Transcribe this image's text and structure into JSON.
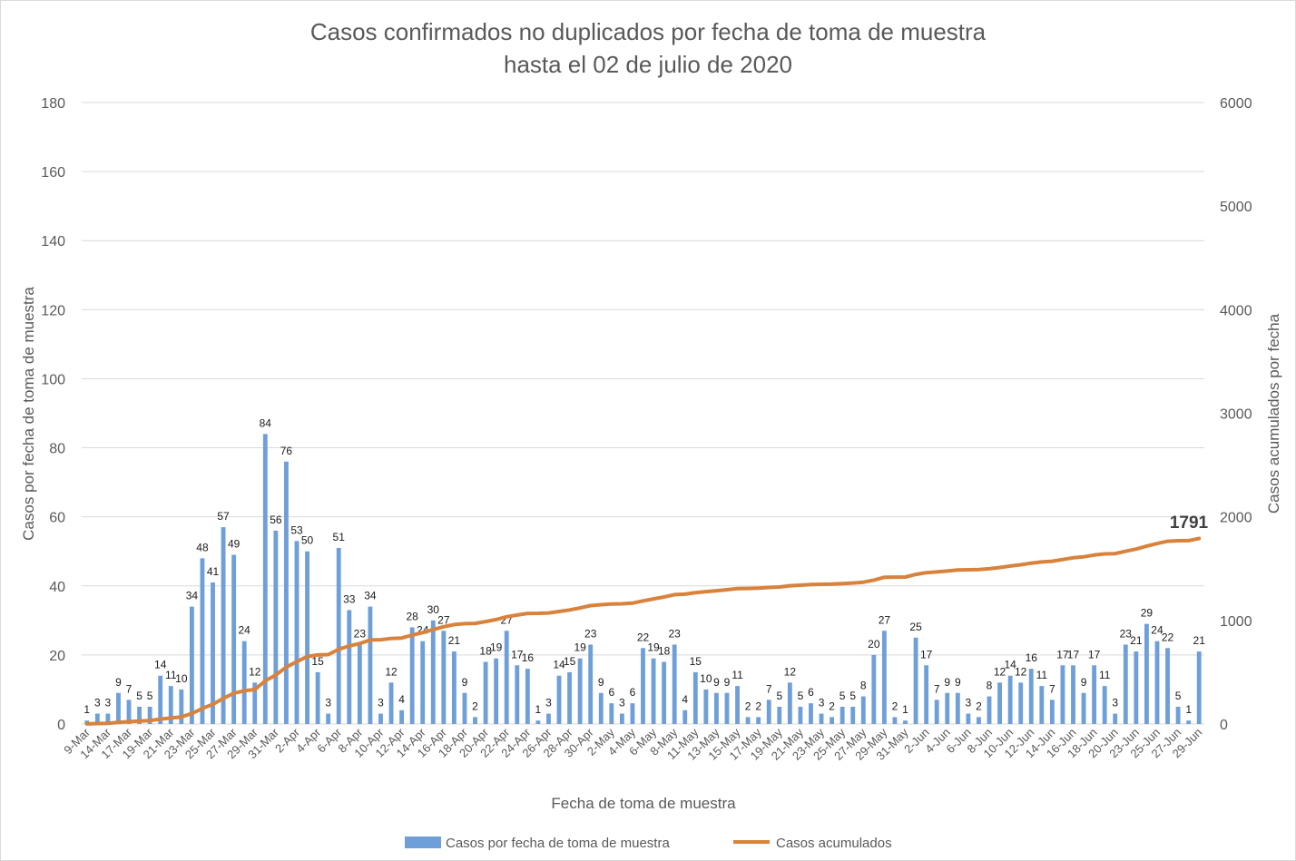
{
  "chart_data": {
    "type": "bar",
    "title": "Casos confirmados no duplicados por fecha de toma de muestra",
    "subtitle": "hasta el 02 de julio de 2020",
    "xlabel": "Fecha de toma de muestra",
    "ylabel": "Casos por fecha de toma de muestra",
    "y2label": "Casos acumulados por fecha",
    "ylim": [
      0,
      180
    ],
    "y2lim": [
      0,
      6000
    ],
    "yticks": [
      "0",
      "20",
      "40",
      "60",
      "80",
      "100",
      "120",
      "140",
      "160",
      "180"
    ],
    "y2ticks": [
      "0",
      "1000",
      "2000",
      "3000",
      "4000",
      "5000",
      "6000"
    ],
    "grid": true,
    "legend_position": "bottom",
    "x_tick_labels": [
      "9-Mar",
      "14-Mar",
      "17-Mar",
      "19-Mar",
      "21-Mar",
      "23-Mar",
      "25-Mar",
      "27-Mar",
      "29-Mar",
      "31-Mar",
      "2-Apr",
      "4-Apr",
      "6-Apr",
      "8-Apr",
      "10-Apr",
      "12-Apr",
      "14-Apr",
      "16-Apr",
      "18-Apr",
      "20-Apr",
      "22-Apr",
      "24-Apr",
      "26-Apr",
      "28-Apr",
      "30-Apr",
      "2-May",
      "4-May",
      "6-May",
      "8-May",
      "11-May",
      "13-May",
      "15-May",
      "17-May",
      "19-May",
      "21-May",
      "23-May",
      "25-May",
      "27-May",
      "29-May",
      "31-May",
      "2-Jun",
      "4-Jun",
      "6-Jun",
      "8-Jun",
      "10-Jun",
      "12-Jun",
      "14-Jun",
      "16-Jun",
      "18-Jun",
      "20-Jun",
      "23-Jun",
      "25-Jun",
      "27-Jun",
      "29-Jun"
    ],
    "series": [
      {
        "name": "Casos por fecha de toma de muestra",
        "type": "bar",
        "color": "#6f9fd8",
        "values": [
          1,
          3,
          3,
          9,
          7,
          5,
          5,
          14,
          11,
          10,
          34,
          48,
          41,
          57,
          49,
          24,
          12,
          84,
          56,
          76,
          53,
          50,
          15,
          3,
          51,
          33,
          23,
          34,
          3,
          12,
          4,
          28,
          24,
          30,
          27,
          21,
          9,
          2,
          18,
          19,
          27,
          17,
          16,
          1,
          3,
          14,
          15,
          19,
          23,
          9,
          6,
          3,
          6,
          22,
          19,
          18,
          23,
          4,
          15,
          10,
          9,
          9,
          11,
          2,
          2,
          7,
          5,
          12,
          5,
          6,
          3,
          2,
          5,
          5,
          8,
          20,
          27,
          2,
          1,
          25,
          17,
          7,
          9,
          9,
          3,
          2,
          8,
          12,
          14,
          12,
          16,
          11,
          7,
          17,
          17,
          9,
          17,
          11,
          3,
          23,
          21,
          29,
          24,
          22,
          5,
          1,
          21
        ]
      },
      {
        "name": "Casos acumulados",
        "type": "line",
        "color": "#d8823c",
        "axis": "right"
      }
    ],
    "annotations": [
      "1791"
    ]
  }
}
